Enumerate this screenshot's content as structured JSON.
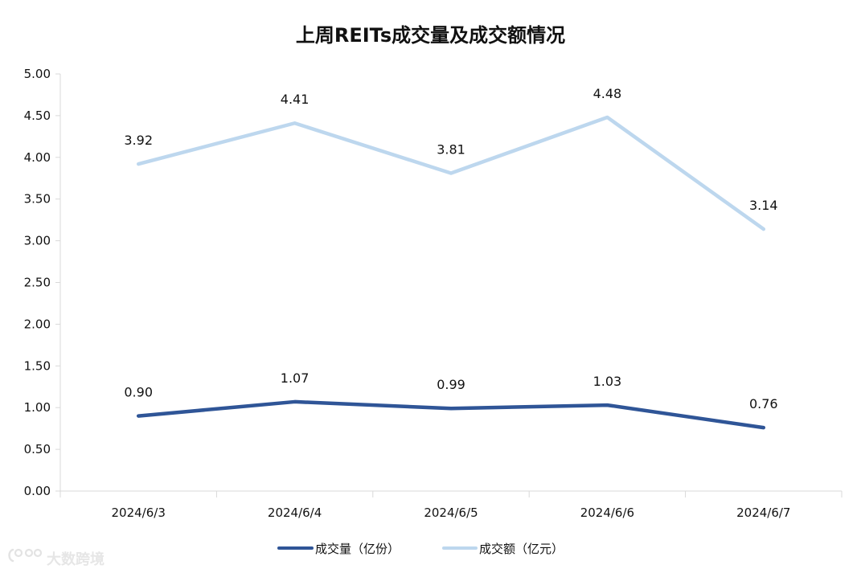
{
  "chart_data": {
    "type": "line",
    "title": "上周REITs成交量及成交额情况",
    "categories": [
      "2024/6/3",
      "2024/6/4",
      "2024/6/5",
      "2024/6/6",
      "2024/6/7"
    ],
    "series": [
      {
        "name": "成交量（亿份）",
        "values": [
          0.9,
          1.07,
          0.99,
          1.03,
          0.76
        ],
        "labels": [
          "0.90",
          "1.07",
          "0.99",
          "1.03",
          "0.76"
        ],
        "color": "#2f5597"
      },
      {
        "name": "成交额（亿元）",
        "values": [
          3.92,
          4.41,
          3.81,
          4.48,
          3.14
        ],
        "labels": [
          "3.92",
          "4.41",
          "3.81",
          "4.48",
          "3.14"
        ],
        "color": "#bdd7ee"
      }
    ],
    "ylim": [
      0,
      5
    ],
    "yticks": [
      "0.00",
      "0.50",
      "1.00",
      "1.50",
      "2.00",
      "2.50",
      "3.00",
      "3.50",
      "4.00",
      "4.50",
      "5.00"
    ],
    "xlabel": "",
    "ylabel": "",
    "grid": false,
    "legend_position": "bottom-center"
  },
  "watermark": {
    "text": "大数跨境"
  }
}
